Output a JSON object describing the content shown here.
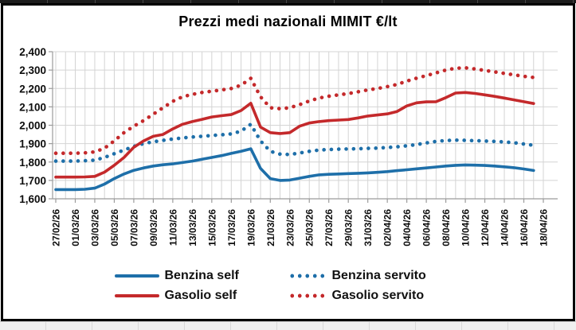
{
  "chart": {
    "title": "Prezzi medi nazionali MIMIT €/lt"
  },
  "colors": {
    "benzina": "#1e6fa9",
    "gasolio": "#c4292b",
    "gridline": "#d4d4d4",
    "axis": "#9b9b9b",
    "label": "#0d0d0d",
    "frame": "#000000"
  },
  "legend": {
    "rows": [
      [
        {
          "label": "Benzina self",
          "color_key": "benzina",
          "style": "solid"
        },
        {
          "label": "Benzina servito",
          "color_key": "benzina",
          "style": "dotted"
        }
      ],
      [
        {
          "label": "Gasolio self",
          "color_key": "gasolio",
          "style": "solid"
        },
        {
          "label": "Gasolio servito",
          "color_key": "gasolio",
          "style": "dotted"
        }
      ]
    ]
  },
  "chart_data": {
    "type": "line",
    "title": "Prezzi medi nazionali MIMIT €/lt",
    "ylim": [
      1600,
      2400
    ],
    "ytick_step": 100,
    "ytick_labels": [
      "1,600",
      "1,700",
      "1,800",
      "1,900",
      "2,000",
      "2,100",
      "2,200",
      "2,300",
      "2,400"
    ],
    "x_is_daily_dates": true,
    "x_first_date": "27/02/26",
    "x_last_data_date": "17/04/26",
    "x_axis_slots": 51,
    "xtick_labels": [
      "27/02/26",
      "01/03/26",
      "03/03/26",
      "05/03/26",
      "07/03/26",
      "09/03/26",
      "11/03/26",
      "13/03/26",
      "15/03/26",
      "17/03/26",
      "19/03/26",
      "21/03/26",
      "23/03/26",
      "25/03/26",
      "27/03/26",
      "29/03/26",
      "31/03/26",
      "02/04/26",
      "04/04/26",
      "06/04/26",
      "08/04/26",
      "10/04/26",
      "12/04/26",
      "14/04/26",
      "16/04/26",
      "18/04/26"
    ],
    "grid": true,
    "legend_position": "bottom",
    "series": [
      {
        "name": "Benzina self",
        "color_key": "benzina",
        "style": "solid",
        "values": [
          1650,
          1650,
          1650,
          1652,
          1658,
          1680,
          1710,
          1735,
          1755,
          1768,
          1778,
          1785,
          1790,
          1797,
          1805,
          1815,
          1825,
          1835,
          1847,
          1858,
          1872,
          1765,
          1710,
          1700,
          1702,
          1712,
          1722,
          1730,
          1733,
          1735,
          1737,
          1739,
          1741,
          1744,
          1748,
          1753,
          1758,
          1763,
          1768,
          1773,
          1778,
          1782,
          1784,
          1783,
          1781,
          1778,
          1774,
          1769,
          1762,
          1754
        ]
      },
      {
        "name": "Benzina servito",
        "color_key": "benzina",
        "style": "dotted",
        "values": [
          1805,
          1805,
          1805,
          1807,
          1810,
          1825,
          1845,
          1865,
          1885,
          1900,
          1910,
          1918,
          1925,
          1931,
          1936,
          1940,
          1944,
          1948,
          1953,
          1968,
          2005,
          1915,
          1858,
          1843,
          1841,
          1849,
          1858,
          1865,
          1868,
          1870,
          1871,
          1872,
          1874,
          1876,
          1879,
          1883,
          1888,
          1895,
          1904,
          1912,
          1917,
          1919,
          1918,
          1916,
          1914,
          1912,
          1909,
          1905,
          1898,
          1891
        ]
      },
      {
        "name": "Gasolio self",
        "color_key": "gasolio",
        "style": "solid",
        "values": [
          1718,
          1718,
          1718,
          1719,
          1722,
          1745,
          1782,
          1825,
          1880,
          1915,
          1940,
          1950,
          1980,
          2005,
          2020,
          2032,
          2045,
          2052,
          2058,
          2080,
          2120,
          1990,
          1960,
          1955,
          1960,
          1995,
          2012,
          2020,
          2025,
          2028,
          2031,
          2040,
          2050,
          2056,
          2062,
          2075,
          2105,
          2122,
          2127,
          2128,
          2150,
          2175,
          2178,
          2173,
          2165,
          2157,
          2148,
          2138,
          2128,
          2118
        ]
      },
      {
        "name": "Gasolio servito",
        "color_key": "gasolio",
        "style": "dotted",
        "values": [
          1848,
          1848,
          1848,
          1850,
          1855,
          1875,
          1915,
          1960,
          1995,
          2025,
          2060,
          2095,
          2130,
          2155,
          2168,
          2178,
          2185,
          2192,
          2200,
          2218,
          2255,
          2155,
          2095,
          2090,
          2095,
          2112,
          2132,
          2148,
          2158,
          2165,
          2172,
          2182,
          2192,
          2200,
          2210,
          2222,
          2240,
          2256,
          2270,
          2285,
          2300,
          2310,
          2312,
          2306,
          2298,
          2290,
          2282,
          2274,
          2266,
          2260
        ]
      }
    ]
  }
}
